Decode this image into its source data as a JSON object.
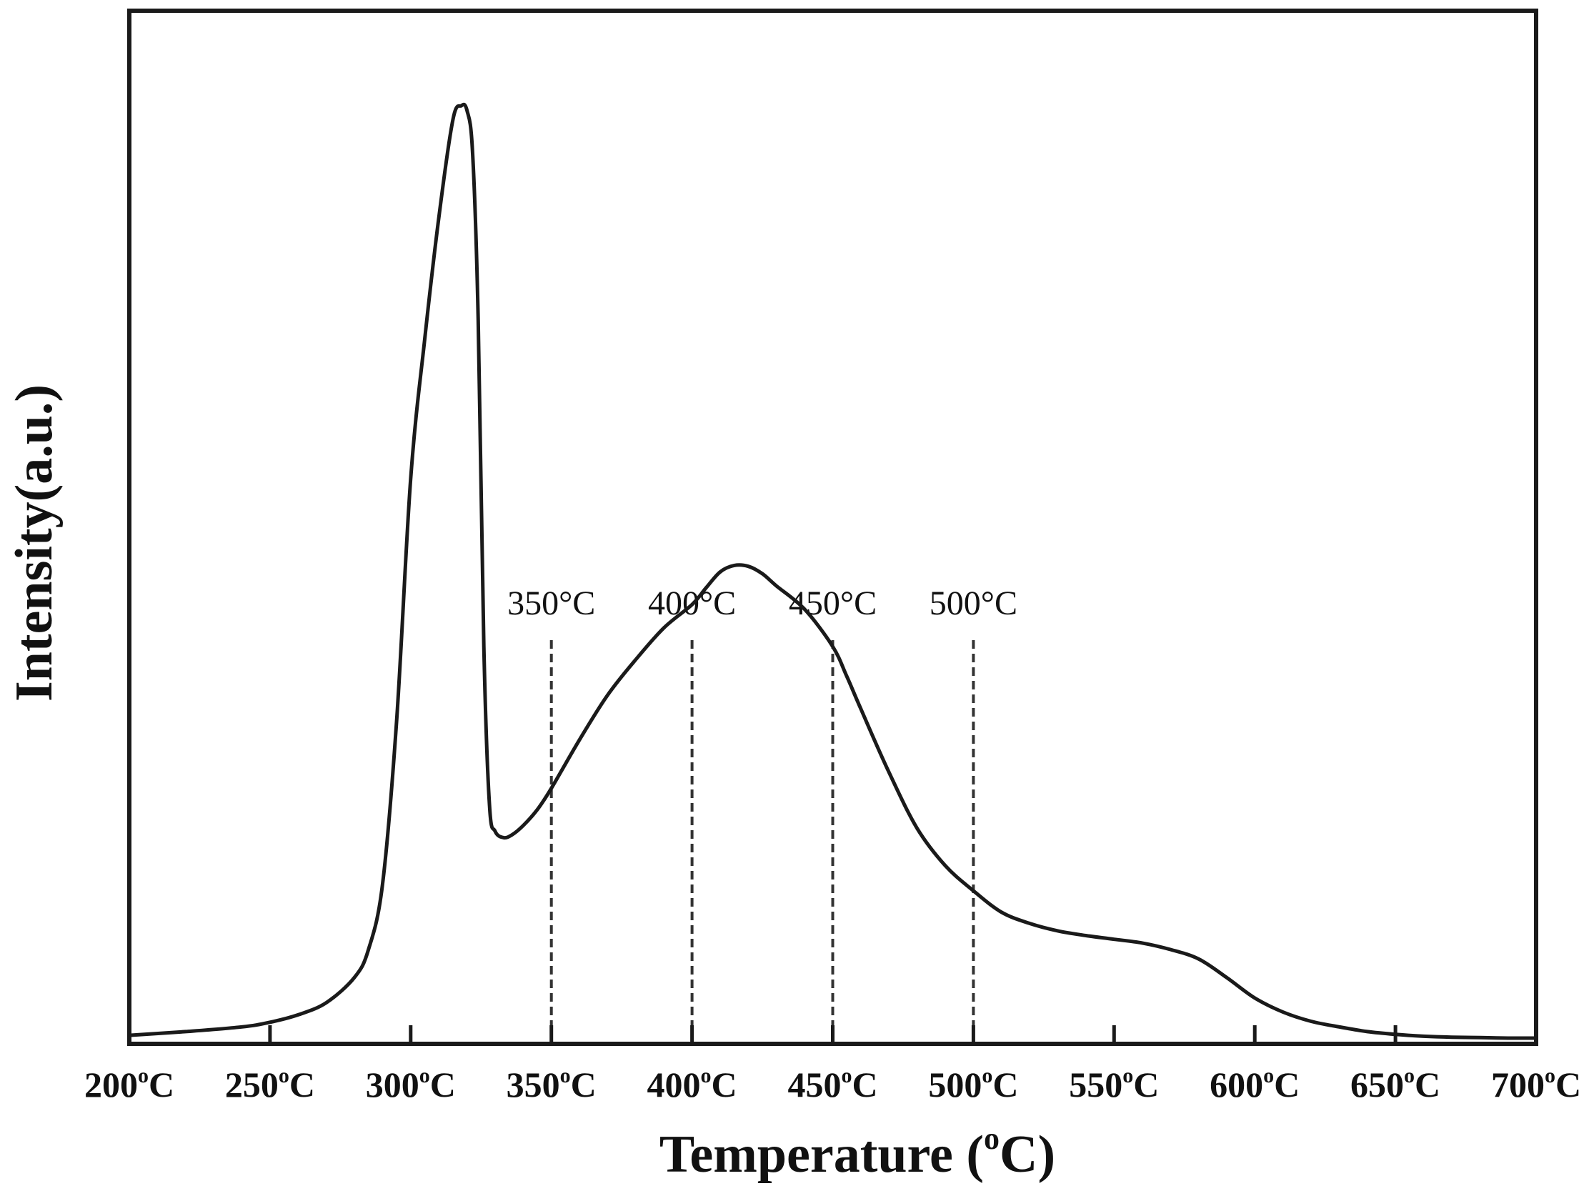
{
  "chart_data": {
    "type": "line",
    "title": "",
    "xlabel": "Temperature (°C)",
    "xlabel_parts": {
      "before": "Temperature (",
      "sup": "o",
      "after": "C)"
    },
    "ylabel": "Intensity(a.u.)",
    "xlim": [
      200,
      700
    ],
    "ylim": [
      0,
      100
    ],
    "grid": false,
    "legend": "none",
    "x_ticks": [
      {
        "value": 200,
        "num": "200",
        "unit": "C"
      },
      {
        "value": 250,
        "num": "250",
        "unit": "C"
      },
      {
        "value": 300,
        "num": "300",
        "unit": "C"
      },
      {
        "value": 350,
        "num": "350",
        "unit": "C"
      },
      {
        "value": 400,
        "num": "400",
        "unit": "C"
      },
      {
        "value": 450,
        "num": "450",
        "unit": "C"
      },
      {
        "value": 500,
        "num": "500",
        "unit": "C"
      },
      {
        "value": 550,
        "num": "550",
        "unit": "C"
      },
      {
        "value": 600,
        "num": "600",
        "unit": "C"
      },
      {
        "value": 650,
        "num": "650",
        "unit": "C"
      },
      {
        "value": 700,
        "num": "700",
        "unit": "C"
      }
    ],
    "annotations": [
      {
        "value": 350,
        "label": "350°C"
      },
      {
        "value": 400,
        "label": "400°C"
      },
      {
        "value": 450,
        "label": "450°C"
      },
      {
        "value": 500,
        "label": "500°C"
      }
    ],
    "series": [
      {
        "color": "#1a1a1a",
        "x": [
          200,
          220,
          240,
          250,
          260,
          270,
          280,
          285,
          290,
          295,
          300,
          305,
          310,
          315,
          318,
          320,
          322,
          324,
          326,
          328,
          330,
          333,
          336,
          340,
          345,
          350,
          360,
          370,
          380,
          390,
          400,
          405,
          410,
          415,
          420,
          425,
          430,
          440,
          450,
          455,
          460,
          470,
          480,
          490,
          500,
          510,
          520,
          530,
          540,
          550,
          560,
          570,
          580,
          590,
          600,
          610,
          620,
          630,
          640,
          650,
          660,
          670,
          680,
          690,
          700
        ],
        "y": [
          0.3,
          0.7,
          1.2,
          1.7,
          2.5,
          3.8,
          6.5,
          9.5,
          16.5,
          34.0,
          60.0,
          75.0,
          88.0,
          98.5,
          100.0,
          99.5,
          95.0,
          77.0,
          42.0,
          25.0,
          22.2,
          21.5,
          21.8,
          22.8,
          24.5,
          26.8,
          32.0,
          36.8,
          40.6,
          44.0,
          46.5,
          48.3,
          50.0,
          50.7,
          50.6,
          49.8,
          48.5,
          46.0,
          42.0,
          38.8,
          35.3,
          28.5,
          22.5,
          18.5,
          15.8,
          13.5,
          12.3,
          11.5,
          11.0,
          10.6,
          10.2,
          9.5,
          8.5,
          6.5,
          4.3,
          2.8,
          1.8,
          1.2,
          0.7,
          0.4,
          0.2,
          0.1,
          0.05,
          0.0,
          0.0
        ]
      }
    ]
  }
}
